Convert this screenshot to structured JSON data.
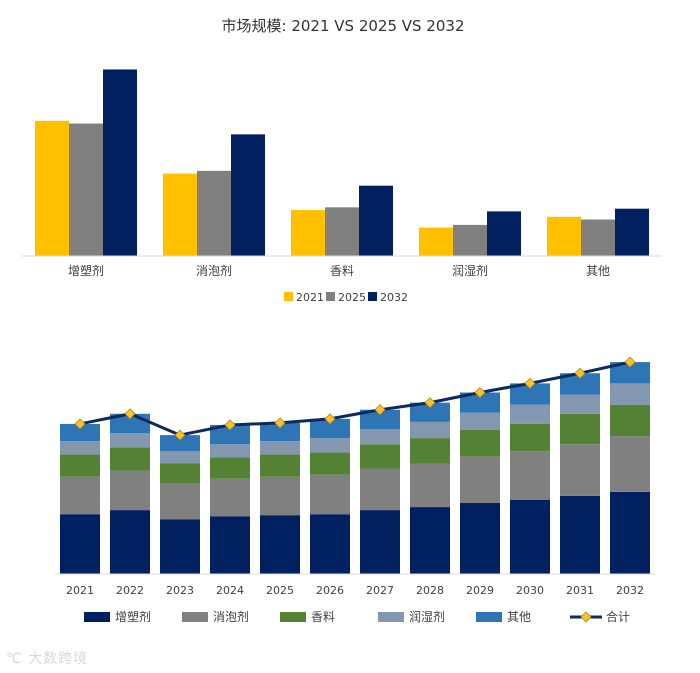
{
  "chart_data": [
    {
      "type": "bar",
      "title": "市场规模: 2021 VS 2025 VS 2032",
      "categories": [
        "增塑剂",
        "消泡剂",
        "香料",
        "润湿剂",
        "其他"
      ],
      "series": [
        {
          "name": "2021",
          "color": "#FFC000",
          "values": [
            100,
            61,
            34,
            21,
            29
          ]
        },
        {
          "name": "2025",
          "color": "#808080",
          "values": [
            98,
            63,
            36,
            23,
            27
          ]
        },
        {
          "name": "2032",
          "color": "#002060",
          "values": [
            138,
            90,
            52,
            33,
            35
          ]
        }
      ],
      "ylim": [
        0,
        145
      ],
      "legend_position": "bottom",
      "grid": false
    },
    {
      "type": "bar",
      "stacked": true,
      "categories": [
        "2021",
        "2022",
        "2023",
        "2024",
        "2025",
        "2026",
        "2027",
        "2028",
        "2029",
        "2030",
        "2031",
        "2032"
      ],
      "series": [
        {
          "name": "增塑剂",
          "color": "#002060",
          "values": [
            59,
            63,
            54,
            57,
            58,
            59,
            63,
            66,
            70,
            73,
            77,
            81
          ]
        },
        {
          "name": "消泡剂",
          "color": "#808080",
          "values": [
            37,
            39,
            35,
            37,
            38,
            39,
            41,
            43,
            46,
            48,
            51,
            55
          ]
        },
        {
          "name": "香料",
          "color": "#548235",
          "values": [
            22,
            23,
            20,
            21,
            22,
            22,
            24,
            25,
            26,
            27,
            30,
            31
          ]
        },
        {
          "name": "润湿剂",
          "color": "#8497B0",
          "values": [
            13,
            14,
            12,
            13,
            13,
            14,
            15,
            16,
            17,
            19,
            19,
            21
          ]
        },
        {
          "name": "其他",
          "color": "#2E75B6",
          "values": [
            17,
            19,
            16,
            19,
            18,
            19,
            19,
            19,
            20,
            21,
            21,
            21
          ]
        }
      ],
      "line": {
        "name": "合计",
        "color": "#0D2A5C",
        "marker_color": "#F4C430",
        "values": [
          148,
          158,
          137,
          147,
          149,
          153,
          162,
          169,
          179,
          188,
          198,
          209
        ]
      },
      "ylim": [
        0,
        215
      ],
      "legend_position": "bottom",
      "grid": false
    }
  ],
  "watermark": "大数跨境"
}
